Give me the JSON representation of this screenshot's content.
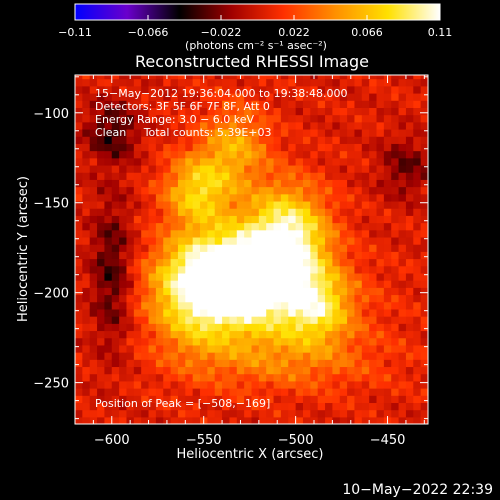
{
  "chart_data": {
    "type": "heatmap",
    "title": "Reconstructed RHESSI Image",
    "xlabel": "Heliocentric X (arcsec)",
    "ylabel": "Heliocentric Y (arcsec)",
    "xlim": [
      -620,
      -428
    ],
    "ylim": [
      -273,
      -79
    ],
    "x_ticks": [
      -600,
      -550,
      -500,
      -450
    ],
    "y_ticks": [
      -250,
      -200,
      -150,
      -100
    ],
    "x_tick_labels": [
      "−600",
      "−550",
      "−500",
      "−450"
    ],
    "y_tick_labels": [
      "−250",
      "−200",
      "−150",
      "−100"
    ],
    "colorbar": {
      "range": [
        -0.11,
        0.11
      ],
      "ticks": [
        -0.11,
        -0.066,
        -0.022,
        0.022,
        0.066,
        0.11
      ],
      "tick_labels": [
        "−0.11",
        "−0.066",
        "−0.022",
        "0.022",
        "0.066",
        "0.11"
      ],
      "unit_label": "(photons cm⁻² s⁻¹ asec⁻²)",
      "colors": [
        "#0000ff",
        "#6a00cc",
        "#000000",
        "#a00000",
        "#ff3000",
        "#ff9000",
        "#ffe000",
        "#ffffff"
      ]
    },
    "annotations": [
      "15−May−2012 19:36:04.000 to 19:38:48.000",
      "Detectors: 3F 5F 6F 7F 8F, Att 0",
      "Energy Range: 3.0 − 6.0 keV",
      "Clean     Total counts: 5.39E+03"
    ],
    "peak_label": "Position of Peak = [−508,−169]",
    "peak": [
      -508,
      -169
    ],
    "sources": [
      {
        "x": -537,
        "y": -188,
        "sx": 22,
        "sy": 16,
        "amp": 0.11
      },
      {
        "x": -505,
        "y": -169,
        "sx": 16,
        "sy": 20,
        "amp": 0.1
      },
      {
        "x": -520,
        "y": -205,
        "sx": 35,
        "sy": 18,
        "amp": 0.06
      },
      {
        "x": -553,
        "y": -143,
        "sx": 13,
        "sy": 14,
        "amp": 0.07
      },
      {
        "x": -533,
        "y": -118,
        "sx": 13,
        "sy": 16,
        "amp": 0.05
      },
      {
        "x": -555,
        "y": -205,
        "sx": 16,
        "sy": 22,
        "amp": 0.04
      },
      {
        "x": -505,
        "y": -238,
        "sx": 40,
        "sy": 13,
        "amp": 0.03
      },
      {
        "x": -488,
        "y": -208,
        "sx": 12,
        "sy": 13,
        "amp": 0.05
      },
      {
        "x": -600,
        "y": -190,
        "sx": 8,
        "sy": 30,
        "amp": -0.04
      },
      {
        "x": -440,
        "y": -130,
        "sx": 10,
        "sy": 12,
        "amp": -0.03
      },
      {
        "x": -600,
        "y": -110,
        "sx": 10,
        "sy": 12,
        "amp": -0.04
      }
    ]
  },
  "timestamp": "10−May−2022 22:39"
}
